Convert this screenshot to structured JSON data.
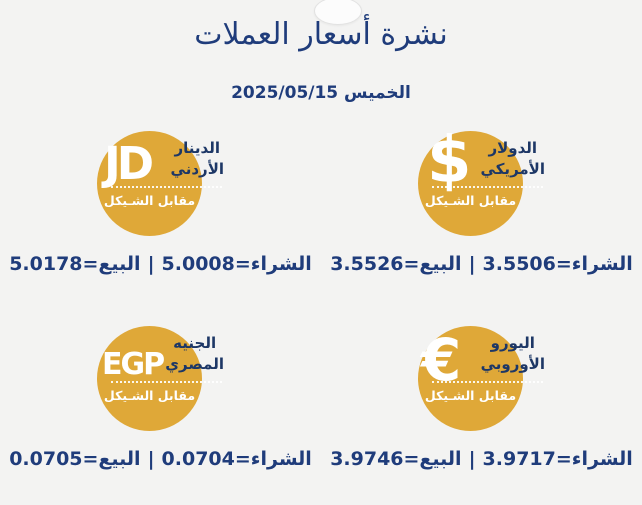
{
  "page": {
    "title": "نشرة أسعار العملات",
    "date": "الخميس 2025/05/15"
  },
  "ui": {
    "separator": "|",
    "buy_label": "الشراء",
    "sell_label": "البيع",
    "vs_label": "مقابل الشـيكل"
  },
  "colors": {
    "background": "#f3f3f2",
    "coin_gold": "#dfa838",
    "coin_text_navy": "#1d3766",
    "text_blue": "#1f3c7b"
  },
  "currencies": [
    {
      "symbol": "$",
      "name_line1": "الدولار",
      "name_line2": "الأمريكي",
      "vs_label": "مقابل الشـيكل",
      "buy": "3.5506",
      "sell": "3.5526",
      "buy_text": "الشراء=3.5506",
      "sell_text": "البيع=3.5526"
    },
    {
      "symbol": "JD",
      "name_line1": "الدينار",
      "name_line2": "الأردني",
      "vs_label": "مقابل الشـيكل",
      "buy": "5.0008",
      "sell": "5.0178",
      "buy_text": "الشراء=5.0008",
      "sell_text": "البيع=5.0178"
    },
    {
      "symbol": "€",
      "name_line1": "اليورو",
      "name_line2": "الأوروبي",
      "vs_label": "مقابل الشـيكل",
      "buy": "3.9717",
      "sell": "3.9746",
      "buy_text": "الشراء=3.9717",
      "sell_text": "البيع=3.9746"
    },
    {
      "symbol": "EGP",
      "name_line1": "الجنيه",
      "name_line2": "المصري",
      "vs_label": "مقابل الشـيكل",
      "buy": "0.0704",
      "sell": "0.0705",
      "buy_text": "الشراء=0.0704",
      "sell_text": "البيع=0.0705"
    }
  ]
}
